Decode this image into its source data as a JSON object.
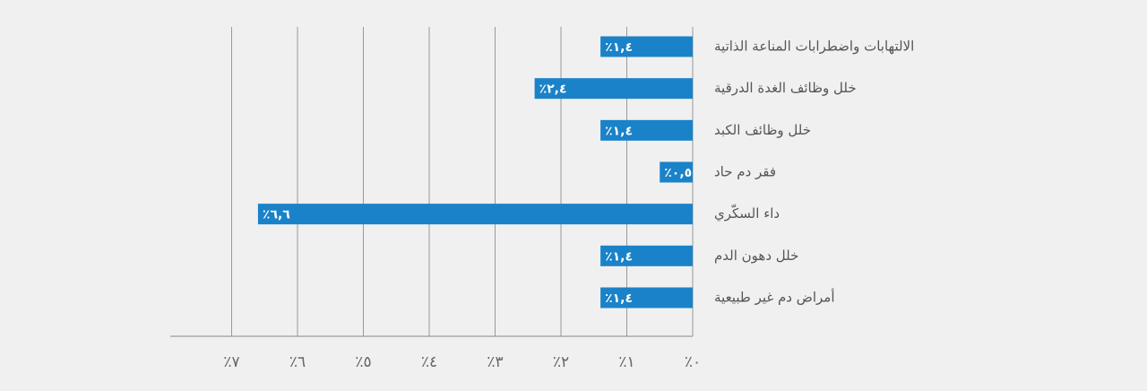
{
  "chart_data": {
    "type": "barh",
    "categories": [
      "الالتهابات واضطرابات المناعة الذاتية",
      "خلل وظائف الغدة الدرقية",
      "خلل وظائف الكبد",
      "فقر دم حاد",
      "داء السكّري",
      "خلل دهون الدم",
      "أمراض دم غير طبيعية"
    ],
    "values": [
      1.4,
      2.4,
      1.4,
      0.5,
      6.6,
      1.4,
      1.4
    ],
    "value_labels": [
      "٪١,٤",
      "٪٢,٤",
      "٪١,٤",
      "٪٠,٥",
      "٪٦,٦",
      "٪١,٤",
      "٪١,٤"
    ],
    "color": "#1a82c8",
    "xlim": [
      0,
      7
    ],
    "xticks": [
      {
        "value": 0,
        "label": "٪٠"
      },
      {
        "value": 1,
        "label": "٪١"
      },
      {
        "value": 2,
        "label": "٪٢"
      },
      {
        "value": 3,
        "label": "٪٣"
      },
      {
        "value": 4,
        "label": "٪٤"
      },
      {
        "value": 5,
        "label": "٪٥"
      },
      {
        "value": 6,
        "label": "٪٦"
      },
      {
        "value": 7,
        "label": "٪٧"
      }
    ],
    "x_reversed": true,
    "grid": true
  }
}
